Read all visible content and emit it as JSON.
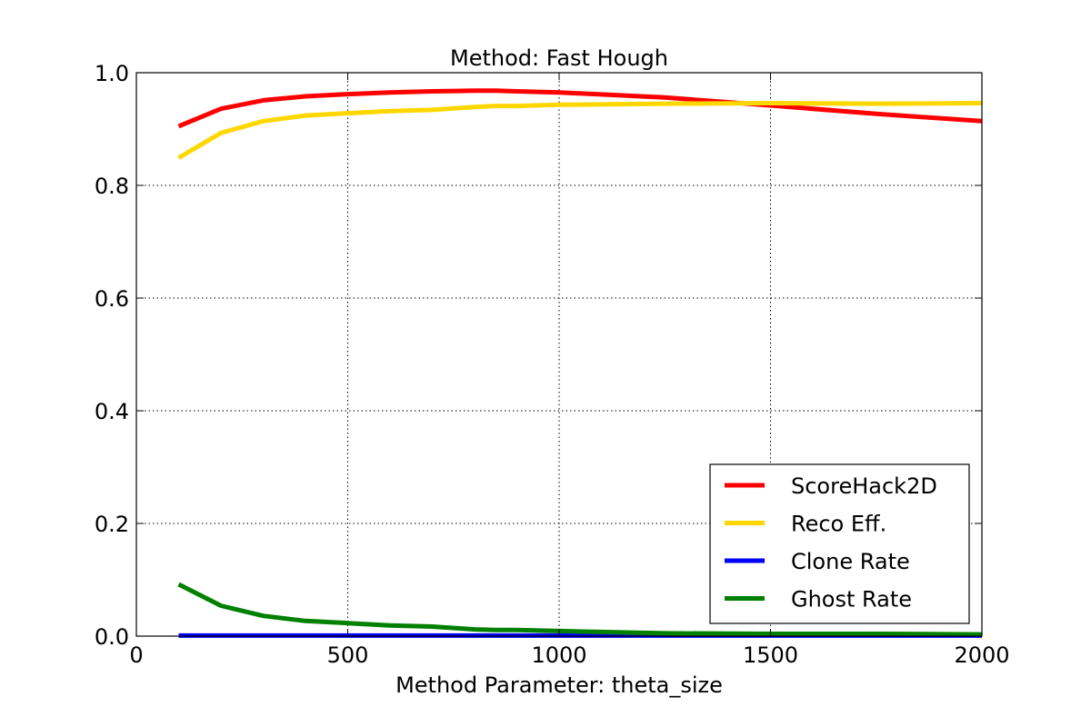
{
  "chart_data": {
    "type": "line",
    "title": "Method: Fast Hough",
    "xlabel": "Method Parameter: theta_size",
    "ylabel": "",
    "xlim": [
      0,
      2000
    ],
    "ylim": [
      0.0,
      1.0
    ],
    "xticks": [
      0,
      500,
      1000,
      1500,
      2000
    ],
    "xtick_labels": [
      "0",
      "500",
      "1000",
      "1500",
      "2000"
    ],
    "yticks": [
      0.0,
      0.2,
      0.4,
      0.6,
      0.8,
      1.0
    ],
    "ytick_labels": [
      "0.0",
      "0.2",
      "0.4",
      "0.6",
      "0.8",
      "1.0"
    ],
    "grid": true,
    "legend_position": "lower-right",
    "x": [
      100,
      200,
      300,
      400,
      500,
      600,
      700,
      800,
      850,
      900,
      1000,
      1250,
      1500,
      1750,
      2000
    ],
    "series": [
      {
        "name": "ScoreHack2D",
        "color": "#ff0000",
        "values": [
          0.905,
          0.936,
          0.951,
          0.958,
          0.962,
          0.965,
          0.967,
          0.968,
          0.968,
          0.967,
          0.965,
          0.956,
          0.942,
          0.927,
          0.914
        ]
      },
      {
        "name": "Reco Eff.",
        "color": "#ffd700",
        "values": [
          0.849,
          0.893,
          0.914,
          0.924,
          0.928,
          0.932,
          0.934,
          0.939,
          0.941,
          0.941,
          0.943,
          0.945,
          0.946,
          0.945,
          0.946
        ]
      },
      {
        "name": "Clone Rate",
        "color": "#0000ff",
        "values": [
          0.001,
          0.001,
          0.001,
          0.001,
          0.001,
          0.001,
          0.001,
          0.001,
          0.001,
          0.001,
          0.001,
          0.001,
          0.001,
          0.001,
          0.001
        ]
      },
      {
        "name": "Ghost Rate",
        "color": "#008000",
        "values": [
          0.092,
          0.054,
          0.036,
          0.027,
          0.023,
          0.019,
          0.017,
          0.012,
          0.011,
          0.011,
          0.009,
          0.005,
          0.004,
          0.004,
          0.003
        ]
      }
    ]
  }
}
